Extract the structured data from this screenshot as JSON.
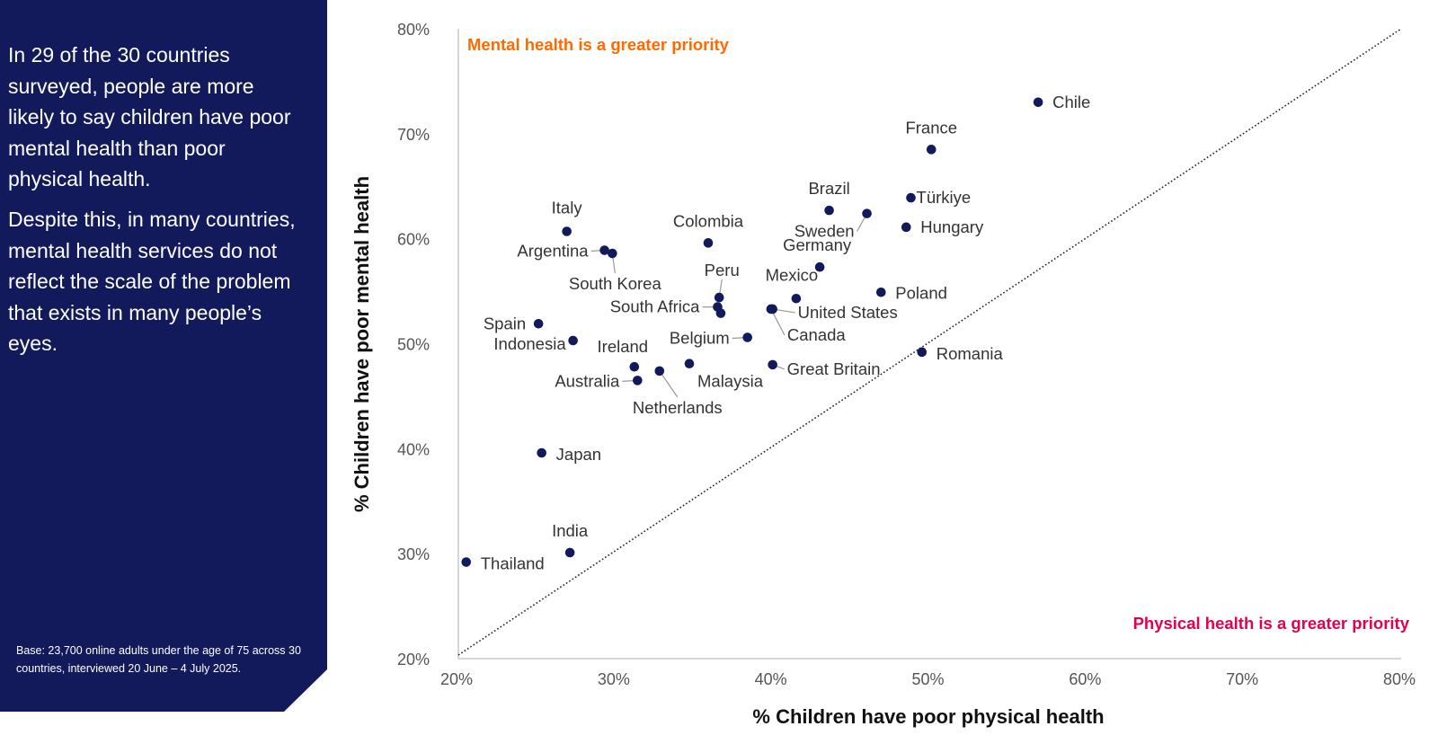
{
  "panel": {
    "paragraphs": [
      "In 29 of the 30 countries surveyed, people are more likely to say children have poor mental health than poor physical health.",
      "Despite this, in many countries, mental health services do not reflect the scale of the problem that exists in many people’s eyes."
    ],
    "base_note": "Base: 23,700 online adults under the age of 75 across 30 countries, interviewed 20 June – 4 July 2025."
  },
  "colors": {
    "panel": "#131a5c",
    "point": "#131a5c",
    "mental_zone": "#ff6a00",
    "physical_zone": "#e3004f"
  },
  "chart_data": {
    "type": "scatter",
    "xlabel": "% Children have poor physical health",
    "ylabel": "% Children have poor mental health",
    "xlim": [
      20,
      80
    ],
    "ylim": [
      20,
      80
    ],
    "x_ticks": [
      "20%",
      "30%",
      "40%",
      "50%",
      "60%",
      "70%",
      "80%"
    ],
    "y_ticks": [
      "20%",
      "30%",
      "40%",
      "50%",
      "60%",
      "70%",
      "80%"
    ],
    "reference_line": "y = x (dotted)",
    "annotations": {
      "upper_left": "Mental health is a greater priority",
      "lower_right": "Physical health is a greater priority"
    },
    "points": [
      {
        "label": "Chile",
        "x": 56.9,
        "y": 73.0
      },
      {
        "label": "France",
        "x": 50.1,
        "y": 68.5
      },
      {
        "label": "Türkiye",
        "x": 48.8,
        "y": 63.9
      },
      {
        "label": "Brazil",
        "x": 43.6,
        "y": 62.7
      },
      {
        "label": "Sweden",
        "x": 46.0,
        "y": 62.4
      },
      {
        "label": "Hungary",
        "x": 48.5,
        "y": 61.1
      },
      {
        "label": "Colombia",
        "x": 35.9,
        "y": 59.6
      },
      {
        "label": "Italy",
        "x": 26.9,
        "y": 60.7
      },
      {
        "label": "Argentina",
        "x": 29.3,
        "y": 58.9
      },
      {
        "label": "South Korea",
        "x": 29.8,
        "y": 58.6
      },
      {
        "label": "Germany",
        "x": 43.0,
        "y": 57.3
      },
      {
        "label": "Poland",
        "x": 46.9,
        "y": 54.9
      },
      {
        "label": "Mexico",
        "x": 41.5,
        "y": 54.3
      },
      {
        "label": "Peru",
        "x": 36.6,
        "y": 54.4
      },
      {
        "label": "South Africa",
        "x": 36.5,
        "y": 53.5
      },
      {
        "label": "",
        "x": 36.7,
        "y": 52.9
      },
      {
        "label": "United States",
        "x": 40.0,
        "y": 53.3
      },
      {
        "label": "Canada",
        "x": 39.9,
        "y": 53.3
      },
      {
        "label": "Spain",
        "x": 25.1,
        "y": 51.9
      },
      {
        "label": "Indonesia",
        "x": 27.3,
        "y": 50.3
      },
      {
        "label": "Belgium",
        "x": 38.4,
        "y": 50.6
      },
      {
        "label": "Romania",
        "x": 49.5,
        "y": 49.2
      },
      {
        "label": "Ireland",
        "x": 31.2,
        "y": 47.8
      },
      {
        "label": "Malaysia",
        "x": 34.7,
        "y": 48.1
      },
      {
        "label": "Great Britain",
        "x": 40.0,
        "y": 48.0
      },
      {
        "label": "Netherlands",
        "x": 32.8,
        "y": 47.4
      },
      {
        "label": "Australia",
        "x": 31.4,
        "y": 46.5
      },
      {
        "label": "Japan",
        "x": 25.3,
        "y": 39.6
      },
      {
        "label": "India",
        "x": 27.1,
        "y": 30.1
      },
      {
        "label": "Thailand",
        "x": 20.5,
        "y": 29.2
      }
    ]
  }
}
